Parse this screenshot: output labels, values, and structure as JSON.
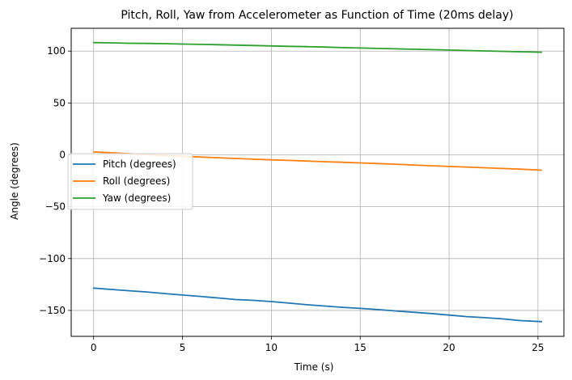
{
  "chart_data": {
    "type": "line",
    "title": "Pitch, Roll, Yaw from Accelerometer as Function of Time (20ms delay)",
    "xlabel": "Time (s)",
    "ylabel": "Angle (degrees)",
    "xlim": [
      -1.26,
      26.46
    ],
    "ylim": [
      -175,
      122
    ],
    "xticks": [
      0,
      5,
      10,
      15,
      20,
      25
    ],
    "xtick_labels": [
      "0",
      "5",
      "10",
      "15",
      "20",
      "25"
    ],
    "yticks": [
      -150,
      -100,
      -50,
      0,
      50,
      100
    ],
    "ytick_labels": [
      "−150",
      "−100",
      "−50",
      "0",
      "50",
      "100"
    ],
    "grid": true,
    "legend_position": "center-left",
    "series": [
      {
        "name": "Pitch (degrees)",
        "color": "#1f77b4",
        "x": [
          0,
          1,
          2,
          3,
          4,
          5,
          6,
          7,
          8,
          9,
          10,
          11,
          12,
          13,
          14,
          15,
          16,
          17,
          18,
          19,
          20,
          21,
          22,
          23,
          24,
          25.2
        ],
        "y": [
          -128.5,
          -129.8,
          -131,
          -132.2,
          -133.8,
          -135.2,
          -136.5,
          -138,
          -139.5,
          -140.3,
          -141.5,
          -143,
          -144.5,
          -145.8,
          -147,
          -148,
          -149.2,
          -150.5,
          -151.8,
          -153,
          -154.5,
          -156,
          -157,
          -158.2,
          -159.8,
          -160.8
        ]
      },
      {
        "name": "Roll (degrees)",
        "color": "#ff7f0e",
        "x": [
          0,
          1,
          2,
          3,
          4,
          5,
          6,
          7,
          8,
          9,
          10,
          11,
          12,
          13,
          14,
          15,
          16,
          17,
          18,
          19,
          20,
          21,
          22,
          23,
          24,
          25.2
        ],
        "y": [
          2.8,
          2,
          1,
          0.2,
          -0.6,
          -1.4,
          -2.1,
          -2.8,
          -3.5,
          -4.2,
          -4.8,
          -5.4,
          -6,
          -6.6,
          -7.2,
          -7.8,
          -8.4,
          -9,
          -9.8,
          -10.5,
          -11.2,
          -11.8,
          -12.5,
          -13.2,
          -13.8,
          -14.8
        ]
      },
      {
        "name": "Yaw (degrees)",
        "color": "#2ca02c",
        "x": [
          0,
          1,
          2,
          3,
          4,
          5,
          6,
          7,
          8,
          9,
          10,
          11,
          12,
          13,
          14,
          15,
          16,
          17,
          18,
          19,
          20,
          21,
          22,
          23,
          24,
          25.2
        ],
        "y": [
          108.2,
          108,
          107.6,
          107.4,
          107.2,
          106.8,
          106.5,
          106.2,
          105.8,
          105.4,
          105,
          104.6,
          104.3,
          103.9,
          103.4,
          103,
          102.6,
          102.2,
          101.8,
          101.4,
          101,
          100.6,
          100.2,
          99.8,
          99.4,
          98.9
        ]
      }
    ]
  }
}
